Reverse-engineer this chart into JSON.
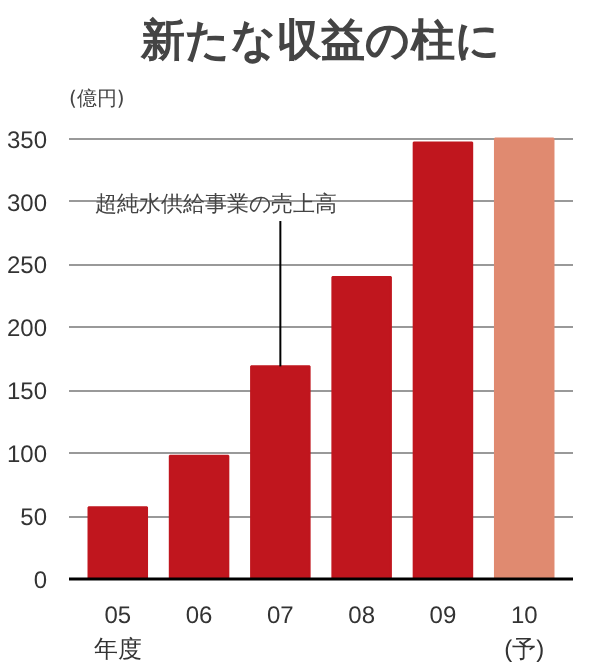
{
  "chart_data": {
    "type": "bar",
    "title": "新たな収益の柱に",
    "ylabel": "(億円)",
    "categories": [
      "05\n年度",
      "06",
      "07",
      "08",
      "09",
      "10\n(予)"
    ],
    "values": [
      57,
      98,
      169,
      240,
      347,
      350
    ],
    "colors": [
      "#c0161e",
      "#c0161e",
      "#c0161e",
      "#c0161e",
      "#c0161e",
      "#e08a70"
    ],
    "ylim": [
      0,
      350
    ],
    "yticks": [
      0,
      50,
      100,
      150,
      200,
      250,
      300,
      350
    ],
    "grid": "y",
    "annotations": [
      {
        "text": "超純水供給事業の売上高",
        "x": "07",
        "y": 169
      }
    ]
  }
}
